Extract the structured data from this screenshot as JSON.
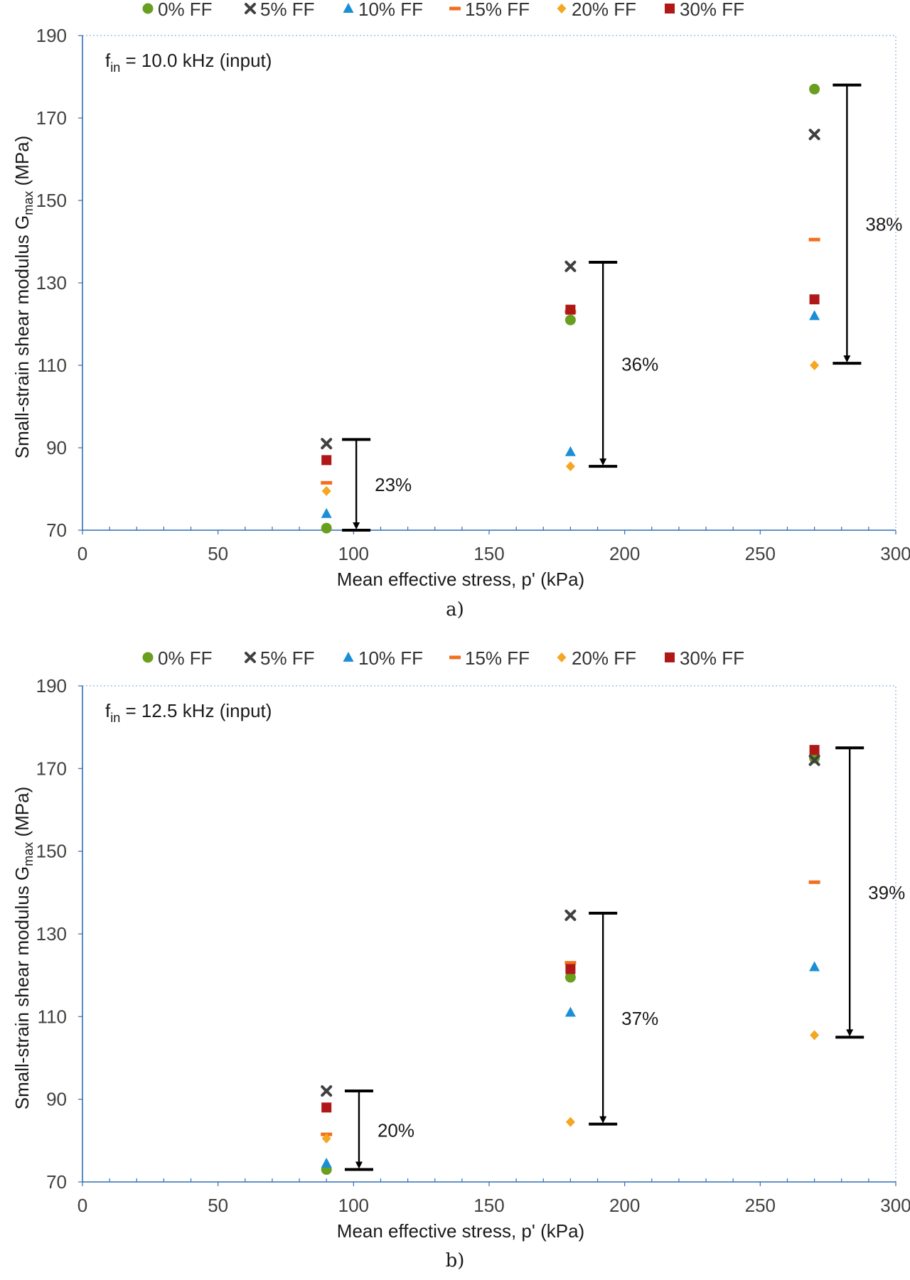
{
  "series_style": {
    "0% FF": {
      "color": "#6a9e1f",
      "marker": "circle"
    },
    "5% FF": {
      "color": "#404040",
      "marker": "x"
    },
    "10% FF": {
      "color": "#1a8fd6",
      "marker": "triangle"
    },
    "15% FF": {
      "color": "#f07020",
      "marker": "dash"
    },
    "20% FF": {
      "color": "#f5a623",
      "marker": "diamond"
    },
    "30% FF": {
      "color": "#b01818",
      "marker": "square"
    }
  },
  "axis_color": "#2e6fb5",
  "chart_data": [
    {
      "type": "scatter",
      "caption": "a)",
      "annotation_pre": "f",
      "annotation_sub": "in",
      "annotation_post": " = 10.0 kHz (input)",
      "xlabel": "Mean effective stress, p' (kPa)",
      "ylabel_pre": "Small-strain shear modulus G",
      "ylabel_sub": "max",
      "ylabel_post": " (MPa)",
      "xlim": [
        0,
        300
      ],
      "ylim": [
        70,
        190
      ],
      "xticks": [
        0,
        50,
        100,
        150,
        200,
        250,
        300
      ],
      "yticks": [
        70,
        90,
        110,
        130,
        150,
        170,
        190
      ],
      "legend_position": "top",
      "series": [
        {
          "name": "0% FF",
          "x": [
            90,
            180,
            270
          ],
          "y": [
            70.5,
            121,
            177
          ]
        },
        {
          "name": "5% FF",
          "x": [
            90,
            180,
            270
          ],
          "y": [
            91,
            134,
            166
          ]
        },
        {
          "name": "10% FF",
          "x": [
            90,
            180,
            270
          ],
          "y": [
            74,
            89,
            122
          ]
        },
        {
          "name": "15% FF",
          "x": [
            90,
            180,
            270
          ],
          "y": [
            81.5,
            123,
            140.5
          ]
        },
        {
          "name": "20% FF",
          "x": [
            90,
            180,
            270
          ],
          "y": [
            79.5,
            85.5,
            110
          ]
        },
        {
          "name": "30% FF",
          "x": [
            90,
            180,
            270
          ],
          "y": [
            87,
            123.5,
            126
          ]
        }
      ],
      "ranges": [
        {
          "x": 101,
          "top": 92,
          "bottom": 70,
          "label": "23%"
        },
        {
          "x": 192,
          "top": 135,
          "bottom": 85.5,
          "label": "36%"
        },
        {
          "x": 282,
          "top": 178,
          "bottom": 110.5,
          "label": "38%"
        }
      ]
    },
    {
      "type": "scatter",
      "caption": "b)",
      "annotation_pre": "f",
      "annotation_sub": "in",
      "annotation_post": " = 12.5 kHz (input)",
      "xlabel": "Mean effective stress, p' (kPa)",
      "ylabel_pre": "Small-strain shear modulus G",
      "ylabel_sub": "max",
      "ylabel_post": " (MPa)",
      "xlim": [
        0,
        300
      ],
      "ylim": [
        70,
        190
      ],
      "xticks": [
        0,
        50,
        100,
        150,
        200,
        250,
        300
      ],
      "yticks": [
        70,
        90,
        110,
        130,
        150,
        170,
        190
      ],
      "legend_position": "top",
      "series": [
        {
          "name": "0% FF",
          "x": [
            90,
            180,
            270
          ],
          "y": [
            73,
            119.5,
            172.5
          ]
        },
        {
          "name": "5% FF",
          "x": [
            90,
            180,
            270
          ],
          "y": [
            92,
            134.5,
            172
          ]
        },
        {
          "name": "10% FF",
          "x": [
            90,
            180,
            270
          ],
          "y": [
            74.5,
            111,
            122
          ]
        },
        {
          "name": "15% FF",
          "x": [
            90,
            180,
            270
          ],
          "y": [
            81.5,
            123,
            142.5
          ]
        },
        {
          "name": "20% FF",
          "x": [
            90,
            180,
            270
          ],
          "y": [
            80.5,
            84.5,
            105.5
          ]
        },
        {
          "name": "30% FF",
          "x": [
            90,
            180,
            270
          ],
          "y": [
            88,
            121.5,
            174.5
          ]
        }
      ],
      "ranges": [
        {
          "x": 102,
          "top": 92,
          "bottom": 73,
          "label": "20%"
        },
        {
          "x": 192,
          "top": 135,
          "bottom": 84,
          "label": "37%"
        },
        {
          "x": 283,
          "top": 175,
          "bottom": 105,
          "label": "39%"
        }
      ]
    }
  ]
}
